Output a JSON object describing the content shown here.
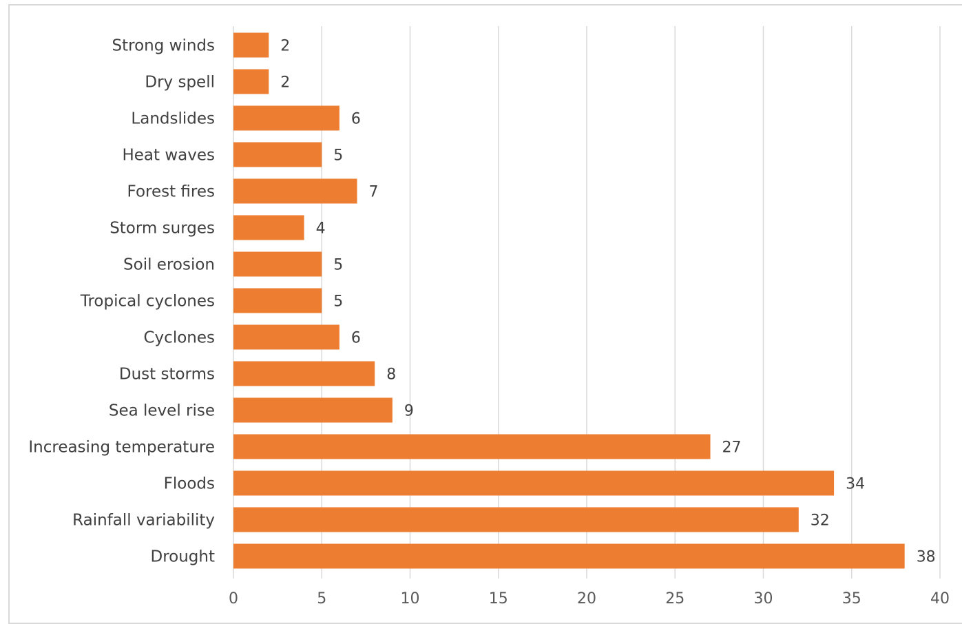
{
  "chart_data": {
    "type": "bar",
    "orientation": "horizontal",
    "categories": [
      "Strong winds",
      "Dry spell",
      "Landslides",
      "Heat waves",
      "Forest fires",
      "Storm surges",
      "Soil erosion",
      "Tropical cyclones",
      "Cyclones",
      "Dust storms",
      "Sea level rise",
      "Increasing temperature",
      "Floods",
      "Rainfall variability",
      "Drought"
    ],
    "values": [
      2,
      2,
      6,
      5,
      7,
      4,
      5,
      5,
      6,
      8,
      9,
      27,
      34,
      32,
      38
    ],
    "xlim": [
      0,
      40
    ],
    "xticks": [
      0,
      5,
      10,
      15,
      20,
      25,
      30,
      35,
      40
    ],
    "title": "",
    "xlabel": "",
    "ylabel": "",
    "grid": "vertical gridlines on",
    "legend": "none",
    "data_labels": "shown at bar ends",
    "colors": {
      "bar": "#ED7D31",
      "gridline": "#d9d9d9",
      "label_text": "#404040"
    }
  }
}
